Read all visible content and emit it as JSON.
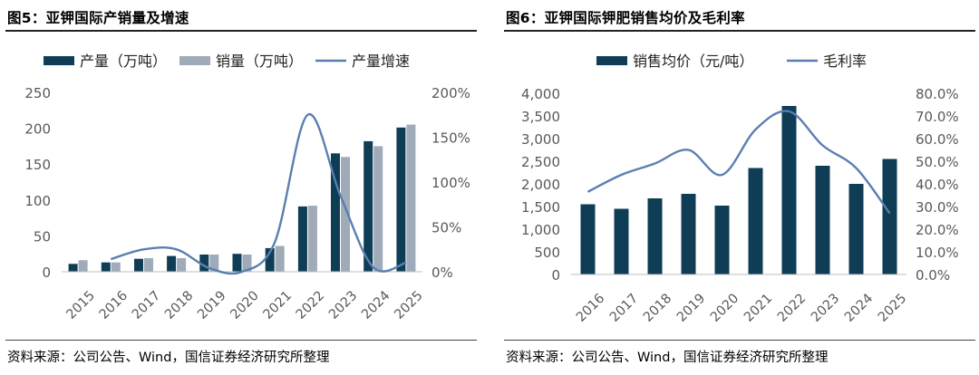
{
  "colors": {
    "primary": "#0e3d55",
    "secondary": "#9fabb8",
    "line": "#5a7fb0",
    "axis_text": "#595959",
    "axis_line": "#bfbfbf"
  },
  "left": {
    "title": "图5：亚钾国际产销量及增速",
    "source": "资料来源：公司公告、Wind，国信证券经济研究所整理"
  },
  "right": {
    "title": "图6：亚钾国际钾肥销售均价及毛利率",
    "source": "资料来源：公司公告、Wind，国信证券经济研究所整理"
  },
  "chart_data": [
    {
      "type": "bar+line",
      "title": "图5：亚钾国际产销量及增速",
      "categories": [
        "2015",
        "2016",
        "2017",
        "2018",
        "2019",
        "2020",
        "2021",
        "2022",
        "2023",
        "2024",
        "2025"
      ],
      "bar_series": [
        {
          "name": "产量（万吨）",
          "color_key": "primary",
          "values": [
            11,
            13,
            18,
            22,
            24,
            25,
            33,
            91,
            165,
            182,
            201
          ]
        },
        {
          "name": "销量（万吨）",
          "color_key": "secondary",
          "values": [
            16,
            13,
            19,
            19,
            24,
            24,
            36,
            92,
            160,
            175,
            205
          ]
        }
      ],
      "line_series": {
        "name": "产量增速",
        "smooth": true,
        "start_index": 1,
        "values_pct": [
          null,
          14,
          25,
          25,
          4,
          0,
          33,
          175,
          85,
          5,
          10
        ]
      },
      "y_left": {
        "range": [
          0,
          250
        ],
        "ticks": [
          "0",
          "50",
          "100",
          "150",
          "200",
          "250"
        ]
      },
      "y_right": {
        "range": [
          0,
          200
        ],
        "ticks": [
          "0%",
          "50%",
          "100%",
          "150%",
          "200%"
        ]
      },
      "legend_position": "top"
    },
    {
      "type": "bar+line",
      "title": "图6：亚钾国际钾肥销售均价及毛利率",
      "categories": [
        "2016",
        "2017",
        "2018",
        "2019",
        "2020",
        "2021",
        "2022",
        "2023",
        "2024",
        "2025"
      ],
      "bar_series": [
        {
          "name": "销售均价（元/吨）",
          "color_key": "primary",
          "values": [
            1550,
            1450,
            1680,
            1780,
            1520,
            2350,
            3720,
            2400,
            2000,
            2550
          ]
        }
      ],
      "line_series": {
        "name": "毛利率",
        "smooth": true,
        "start_index": 0,
        "values_pct": [
          36.5,
          44,
          49,
          55,
          44,
          64,
          72,
          57,
          47,
          27
        ]
      },
      "y_left": {
        "range": [
          0,
          4000
        ],
        "ticks": [
          "0",
          "500",
          "1,000",
          "1,500",
          "2,000",
          "2,500",
          "3,000",
          "3,500",
          "4,000"
        ]
      },
      "y_right": {
        "range": [
          0,
          80
        ],
        "ticks": [
          "0.0%",
          "10.0%",
          "20.0%",
          "30.0%",
          "40.0%",
          "50.0%",
          "60.0%",
          "70.0%",
          "80.0%"
        ]
      },
      "legend_position": "top"
    }
  ]
}
